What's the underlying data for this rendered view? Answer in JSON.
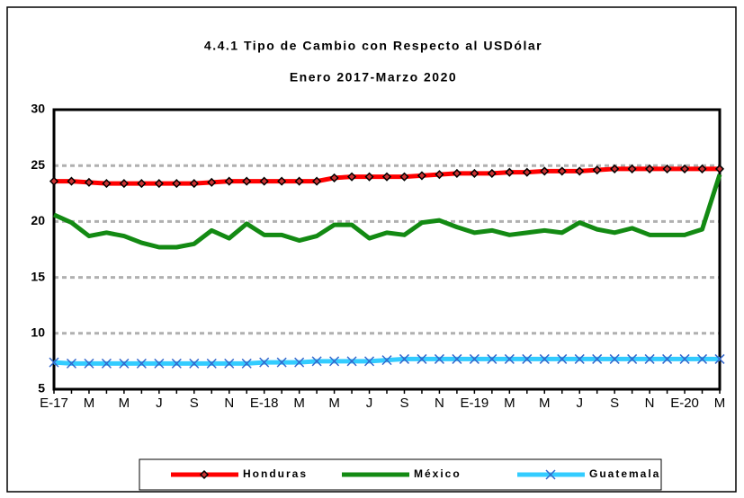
{
  "chart_data": {
    "type": "line",
    "title": "4.4.1 Tipo de Cambio con Respecto al USDólar",
    "subtitle": "Enero 2017-Marzo 2020",
    "categories": [
      "E-17",
      null,
      "M",
      null,
      "M",
      null,
      "J",
      null,
      "S",
      null,
      "N",
      null,
      "E-18",
      null,
      "M",
      null,
      "M",
      null,
      "J",
      null,
      "S",
      null,
      "N",
      null,
      "E-19",
      null,
      "M",
      null,
      "M",
      null,
      "J",
      null,
      "S",
      null,
      "N",
      null,
      "E-20",
      null,
      "M"
    ],
    "series": [
      {
        "name": "Honduras",
        "color": "#ff0000",
        "marker": "diamond",
        "values": [
          23.6,
          23.6,
          23.5,
          23.4,
          23.4,
          23.4,
          23.4,
          23.4,
          23.4,
          23.5,
          23.6,
          23.6,
          23.6,
          23.6,
          23.6,
          23.6,
          23.9,
          24.0,
          24.0,
          24.0,
          24.0,
          24.1,
          24.2,
          24.3,
          24.3,
          24.3,
          24.4,
          24.4,
          24.5,
          24.5,
          24.5,
          24.6,
          24.7,
          24.7,
          24.7,
          24.7,
          24.7,
          24.7,
          24.7
        ]
      },
      {
        "name": "México",
        "color": "#138a13",
        "marker": "none",
        "values": [
          20.6,
          19.9,
          18.7,
          19.0,
          18.7,
          18.1,
          17.7,
          17.7,
          18.0,
          19.2,
          18.5,
          19.8,
          18.8,
          18.8,
          18.3,
          18.7,
          19.7,
          19.7,
          18.5,
          19.0,
          18.8,
          19.9,
          20.1,
          19.5,
          19.0,
          19.2,
          18.8,
          19.0,
          19.2,
          19.0,
          19.9,
          19.3,
          19.0,
          19.4,
          18.8,
          18.8,
          18.8,
          19.3,
          24.2
        ]
      },
      {
        "name": "Guatemala",
        "color": "#33ccff",
        "marker": "x",
        "values": [
          7.4,
          7.3,
          7.3,
          7.3,
          7.3,
          7.3,
          7.3,
          7.3,
          7.3,
          7.3,
          7.3,
          7.3,
          7.4,
          7.4,
          7.4,
          7.5,
          7.5,
          7.5,
          7.5,
          7.6,
          7.7,
          7.7,
          7.7,
          7.7,
          7.7,
          7.7,
          7.7,
          7.7,
          7.7,
          7.7,
          7.7,
          7.7,
          7.7,
          7.7,
          7.7,
          7.7,
          7.7,
          7.7,
          7.7
        ]
      }
    ],
    "ylim": [
      5,
      30
    ],
    "yticks": [
      5,
      10,
      15,
      20,
      25,
      30
    ],
    "grid": true,
    "legend": "bottom"
  }
}
